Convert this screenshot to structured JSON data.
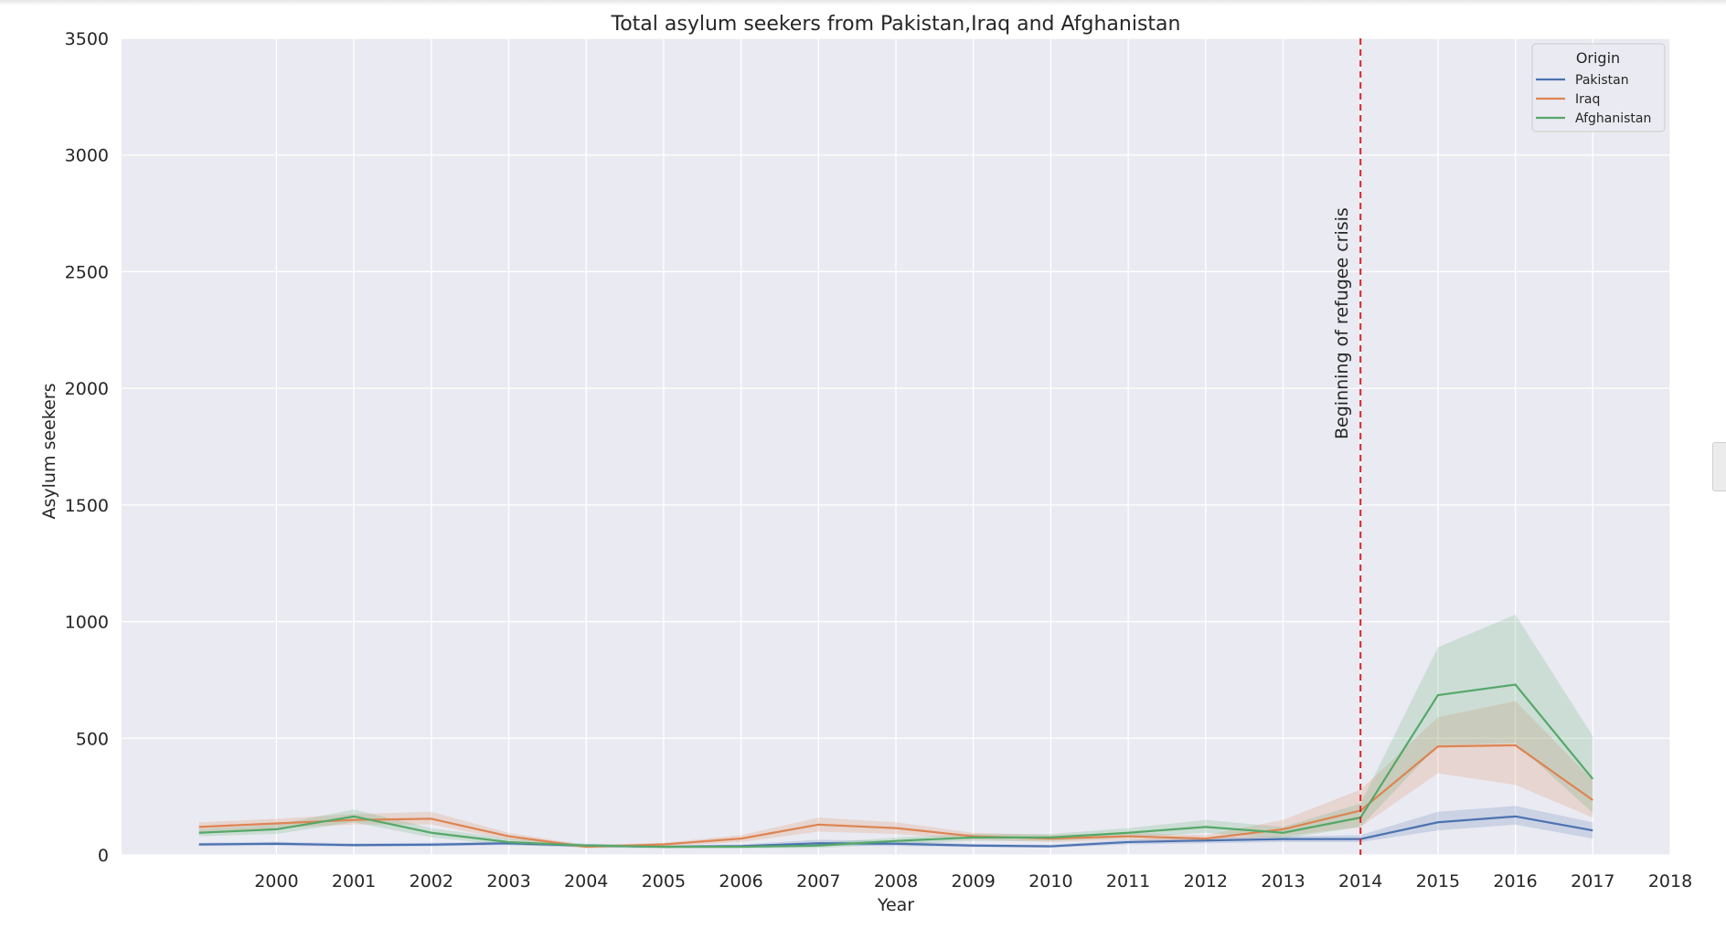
{
  "chart_data": {
    "type": "line",
    "title": "Total asylum seekers from Pakistan,Iraq and Afghanistan",
    "xlabel": "Year",
    "ylabel": "Asylum seekers",
    "xlim": [
      1998,
      2018
    ],
    "ylim": [
      0,
      3500
    ],
    "x_ticks": [
      "2000",
      "2001",
      "2002",
      "2003",
      "2004",
      "2005",
      "2006",
      "2007",
      "2008",
      "2009",
      "2010",
      "2011",
      "2012",
      "2013",
      "2014",
      "2015",
      "2016",
      "2017",
      "2018"
    ],
    "y_ticks": [
      "0",
      "500",
      "1000",
      "1500",
      "2000",
      "2500",
      "3000",
      "3500"
    ],
    "grid": true,
    "legend": {
      "title": "Origin",
      "placement": "top-right"
    },
    "x": [
      1999,
      2000,
      2001,
      2002,
      2003,
      2004,
      2005,
      2006,
      2007,
      2008,
      2009,
      2010,
      2011,
      2012,
      2013,
      2014,
      2015,
      2016,
      2017
    ],
    "series": [
      {
        "name": "Pakistan",
        "color": "#4c72b0",
        "values": [
          45,
          48,
          42,
          44,
          50,
          40,
          35,
          38,
          50,
          48,
          40,
          37,
          55,
          62,
          68,
          68,
          140,
          165,
          105
        ],
        "ci_low": [
          38,
          40,
          35,
          37,
          42,
          34,
          30,
          32,
          40,
          38,
          34,
          31,
          45,
          50,
          55,
          55,
          105,
          130,
          70
        ],
        "ci_high": [
          52,
          56,
          50,
          52,
          58,
          47,
          40,
          45,
          65,
          60,
          47,
          44,
          65,
          75,
          80,
          85,
          185,
          210,
          140
        ]
      },
      {
        "name": "Iraq",
        "color": "#dd8452",
        "values": [
          120,
          135,
          150,
          155,
          80,
          35,
          45,
          70,
          130,
          115,
          80,
          70,
          80,
          70,
          110,
          190,
          465,
          470,
          235
        ],
        "ci_low": [
          100,
          115,
          130,
          130,
          65,
          28,
          38,
          55,
          100,
          90,
          65,
          55,
          65,
          55,
          80,
          120,
          350,
          300,
          160
        ],
        "ci_high": [
          140,
          155,
          175,
          185,
          95,
          42,
          52,
          85,
          160,
          140,
          95,
          85,
          95,
          85,
          150,
          280,
          590,
          660,
          320
        ]
      },
      {
        "name": "Afghanistan",
        "color": "#55a868",
        "values": [
          95,
          110,
          165,
          95,
          55,
          40,
          35,
          35,
          40,
          60,
          75,
          75,
          95,
          120,
          95,
          160,
          685,
          730,
          325
        ],
        "ci_low": [
          80,
          90,
          140,
          75,
          42,
          32,
          28,
          28,
          30,
          45,
          60,
          60,
          75,
          95,
          70,
          120,
          470,
          480,
          180
        ],
        "ci_high": [
          110,
          130,
          195,
          115,
          70,
          48,
          42,
          42,
          52,
          75,
          90,
          90,
          115,
          150,
          120,
          220,
          890,
          1030,
          510
        ]
      }
    ],
    "annotations": [
      {
        "type": "vline",
        "x": 2014,
        "color": "#d62728",
        "style": "dashed",
        "text": "Beginning of refugee crisis"
      }
    ]
  }
}
